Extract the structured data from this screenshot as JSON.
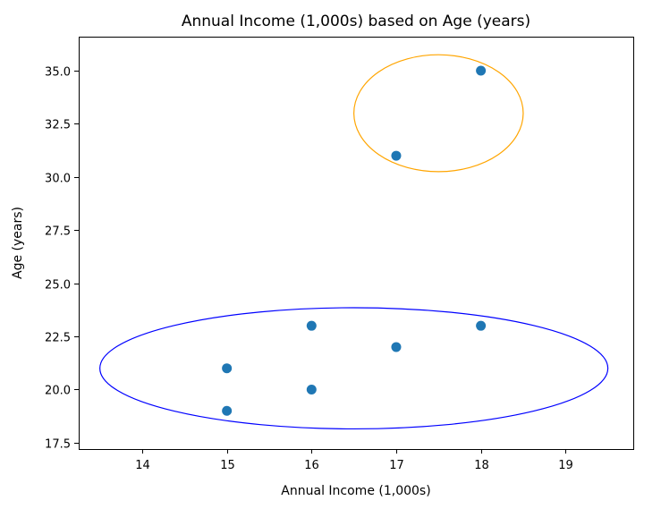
{
  "chart_data": {
    "type": "scatter",
    "title": "Annual Income (1,000s) based on Age (years)",
    "xlabel": "Annual Income (1,000s)",
    "ylabel": "Age (years)",
    "xlim": [
      13.25,
      19.8
    ],
    "ylim": [
      17.2,
      36.6
    ],
    "xticks": [
      14,
      15,
      16,
      17,
      18,
      19
    ],
    "yticks": [
      17.5,
      20.0,
      22.5,
      25.0,
      27.5,
      30.0,
      32.5,
      35.0
    ],
    "xtick_labels": [
      "14",
      "15",
      "16",
      "17",
      "18",
      "19"
    ],
    "ytick_labels": [
      "17.5",
      "20.0",
      "22.5",
      "25.0",
      "27.5",
      "30.0",
      "32.5",
      "35.0"
    ],
    "grid": false,
    "point_color": "#1f77b4",
    "points": [
      {
        "x": 15,
        "y": 19
      },
      {
        "x": 15,
        "y": 21
      },
      {
        "x": 16,
        "y": 20
      },
      {
        "x": 16,
        "y": 23
      },
      {
        "x": 17,
        "y": 22
      },
      {
        "x": 18,
        "y": 23
      },
      {
        "x": 17,
        "y": 31
      },
      {
        "x": 18,
        "y": 35
      }
    ],
    "annotations": [
      {
        "shape": "ellipse",
        "center": [
          17.5,
          33.0
        ],
        "width": 2.0,
        "height": 5.5,
        "color": "#ffa500"
      },
      {
        "shape": "ellipse",
        "center": [
          16.5,
          21.0
        ],
        "width": 6.0,
        "height": 5.7,
        "color": "#0000ff"
      }
    ]
  }
}
